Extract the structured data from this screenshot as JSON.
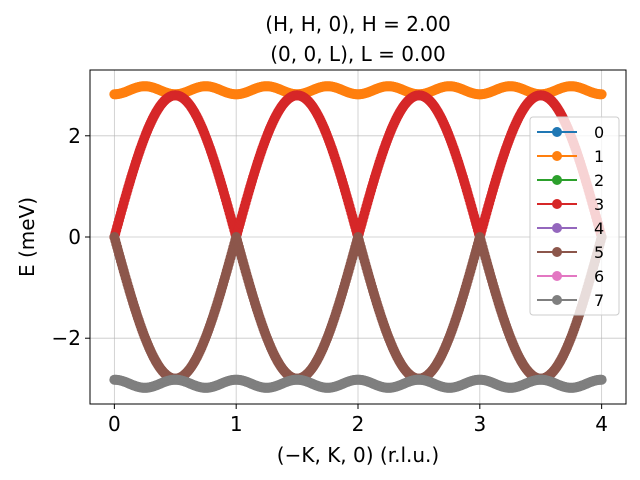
{
  "chart_data": {
    "type": "scatter",
    "title_line1": "(H, H, 0), H = 2.00",
    "title_line2": "(0, 0, L), L = 0.00",
    "xlabel": "(−K, K, 0) (r.l.u.)",
    "ylabel": "E (meV)",
    "xlim": [
      -0.2,
      4.2
    ],
    "ylim": [
      -3.3,
      3.3
    ],
    "xticks": [
      0,
      1,
      2,
      3,
      4
    ],
    "xtick_labels": [
      "0",
      "1",
      "2",
      "3",
      "4"
    ],
    "yticks": [
      -2,
      0,
      2
    ],
    "ytick_labels": [
      "−2",
      "0",
      "2"
    ],
    "grid": true,
    "legend_position": "center-right",
    "series": [
      {
        "name": "0",
        "color": "#1f77b4",
        "formula": "upper_flat",
        "visible": false
      },
      {
        "name": "1",
        "color": "#ff7f0e",
        "formula": "upper_flat",
        "visible": true
      },
      {
        "name": "2",
        "color": "#2ca02c",
        "formula": "upper_dispersive",
        "visible": false
      },
      {
        "name": "3",
        "color": "#d62728",
        "formula": "upper_dispersive",
        "visible": true
      },
      {
        "name": "4",
        "color": "#9467bd",
        "formula": "lower_dispersive",
        "visible": false
      },
      {
        "name": "5",
        "color": "#8c564b",
        "formula": "lower_dispersive",
        "visible": true
      },
      {
        "name": "6",
        "color": "#e377c2",
        "formula": "lower_flat",
        "visible": false
      },
      {
        "name": "7",
        "color": "#7f7f7f",
        "formula": "lower_flat",
        "visible": true
      }
    ],
    "model": {
      "dispersive_amplitude_meV": 2.8,
      "flat_mean_meV": 2.9,
      "flat_modulation_meV": 0.08,
      "x_range": [
        0,
        4
      ],
      "period_rlu": 1
    }
  }
}
